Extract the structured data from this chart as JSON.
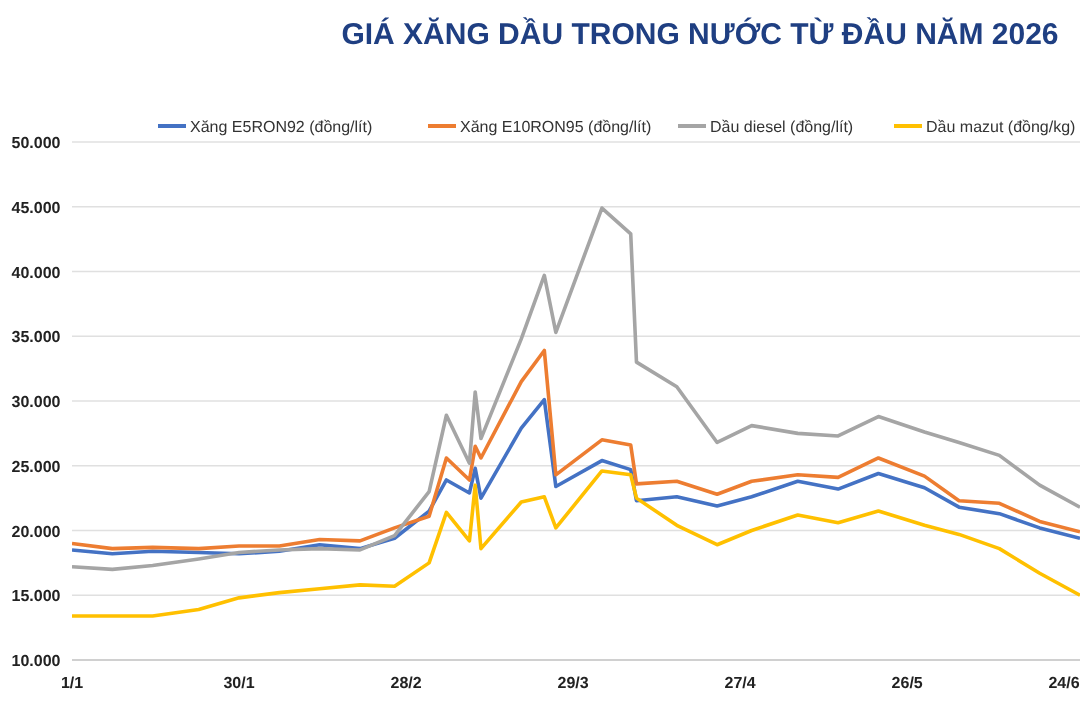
{
  "chart_data": {
    "type": "line",
    "title": "GIÁ XĂNG DẦU TRONG NƯỚC TỪ ĐẦU NĂM 2026",
    "x": [
      "--01-01",
      "--01-08",
      "--01-15",
      "--01-23",
      "--01-30",
      "--02-06",
      "--02-13",
      "--02-20",
      "--02-26",
      "--03-04",
      "--03-07",
      "--03-11",
      "--03-12",
      "--03-13",
      "--03-20",
      "--03-24",
      "--03-26",
      "--04-03",
      "--04-08",
      "--04-09",
      "--04-16",
      "--04-23",
      "--04-29",
      "--05-07",
      "--05-14",
      "--05-21",
      "--05-29",
      "--06-04",
      "--06-11",
      "--06-18",
      "--06-25"
    ],
    "series": [
      {
        "name": "Xăng E5RON92 (đồng/lít)",
        "color": "#4472c4",
        "values": [
          18500,
          18200,
          18400,
          18300,
          18200,
          18400,
          18900,
          18600,
          19400,
          21500,
          23900,
          22900,
          24800,
          22500,
          27900,
          30100,
          23400,
          25400,
          24700,
          22300,
          22600,
          21900,
          22600,
          23800,
          23200,
          24400,
          23300,
          21800,
          21300,
          20200,
          19400
        ]
      },
      {
        "name": "Xăng E10RON95 (đồng/lít)",
        "color": "#ed7d31",
        "values": [
          19000,
          18600,
          18700,
          18600,
          18800,
          18800,
          19300,
          19200,
          20200,
          21100,
          25600,
          23900,
          26500,
          25600,
          31500,
          33900,
          24300,
          27000,
          26600,
          23600,
          23800,
          22800,
          23800,
          24300,
          24100,
          25600,
          24200,
          22300,
          22100,
          20700,
          19900
        ]
      },
      {
        "name": "Dầu diesel (đồng/lít)",
        "color": "#a5a5a5",
        "values": [
          17200,
          17000,
          17300,
          17800,
          18300,
          18500,
          18600,
          18500,
          19600,
          23000,
          28900,
          25200,
          30700,
          27100,
          34800,
          39700,
          35300,
          44900,
          42900,
          33000,
          31100,
          26800,
          28100,
          27500,
          27300,
          28800,
          27600,
          26800,
          25800,
          23500,
          21800
        ]
      },
      {
        "name": "Dầu mazut (đồng/kg)",
        "color": "#ffc000",
        "values": [
          13400,
          13400,
          13400,
          13900,
          14800,
          15200,
          15500,
          15800,
          15700,
          17500,
          21400,
          19200,
          23500,
          18600,
          22200,
          22600,
          20200,
          24600,
          24300,
          22500,
          20400,
          18900,
          20000,
          21200,
          20600,
          21500,
          20400,
          19700,
          18600,
          16700,
          15000
        ]
      }
    ],
    "xlim": [
      "--01-01",
      "--06-25"
    ],
    "xticks": [
      {
        "value": "--01-01",
        "label": "1/1"
      },
      {
        "value": "--01-30",
        "label": "30/1"
      },
      {
        "value": "--02-28",
        "label": "28/2"
      },
      {
        "value": "--03-29",
        "label": "29/3"
      },
      {
        "value": "--04-27",
        "label": "27/4"
      },
      {
        "value": "--05-26",
        "label": "26/5"
      },
      {
        "value": "--06-24",
        "label": "24/6"
      }
    ],
    "ylim": [
      10000,
      50000
    ],
    "yticks": [
      {
        "value": 10000,
        "label": "10.000"
      },
      {
        "value": 15000,
        "label": "15.000"
      },
      {
        "value": 20000,
        "label": "20.000"
      },
      {
        "value": 25000,
        "label": "25.000"
      },
      {
        "value": 30000,
        "label": "30.000"
      },
      {
        "value": 35000,
        "label": "35.000"
      },
      {
        "value": 40000,
        "label": "40.000"
      },
      {
        "value": 45000,
        "label": "45.000"
      },
      {
        "value": 50000,
        "label": "50.000"
      }
    ],
    "grid": "y",
    "legend": "top",
    "marker": "none",
    "line_style": "solid"
  }
}
